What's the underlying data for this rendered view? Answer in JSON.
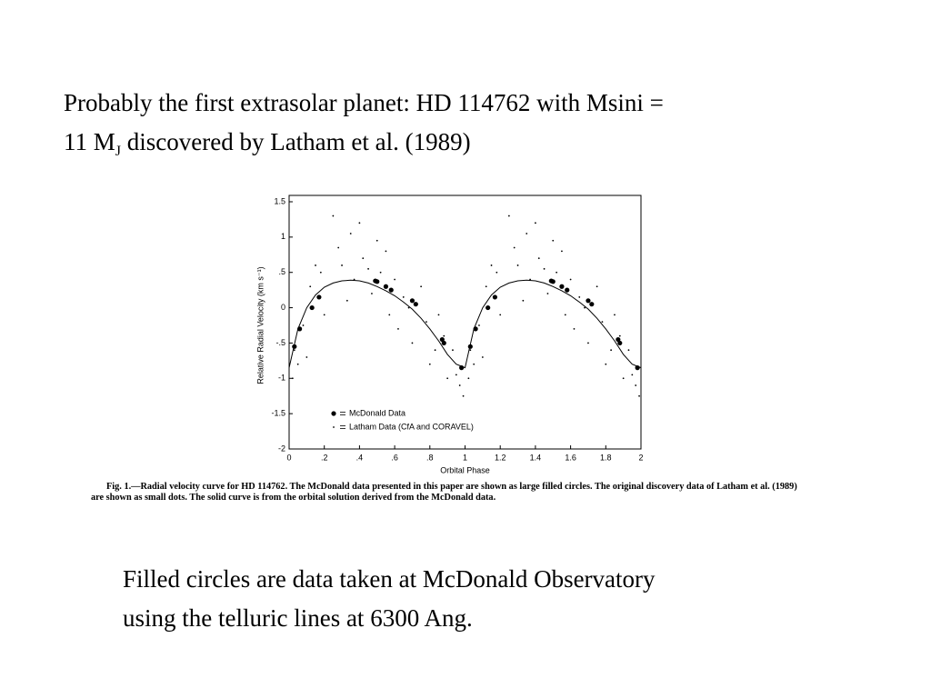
{
  "slide": {
    "title_line1": "Probably the first extrasolar planet: HD 114762 with Msini =",
    "title_line2_a": "11 M",
    "title_line2_sub": "J",
    "title_line2_b": " discovered by Latham et al. (1989)",
    "caption": "Fig. 1.—Radial velocity curve for HD 114762. The McDonald data presented in this paper are shown as large filled circles. The original discovery data of Latham et al. (1989) are shown as small dots. The solid curve is from the orbital solution derived from the McDonald data.",
    "note_line1": "Filled circles are data taken at McDonald Observatory",
    "note_line2": "using the telluric lines at 6300 Ang."
  },
  "chart_data": {
    "type": "scatter",
    "x_label": "Orbital Phase",
    "y_label": "Relative Radial Velocity (km s⁻¹)",
    "xlim": [
      0,
      2
    ],
    "ylim": [
      -2,
      1.5
    ],
    "xticks": [
      0,
      {
        "value": 0.2,
        "label": ".2"
      },
      {
        "value": 0.4,
        "label": ".4"
      },
      {
        "value": 0.6,
        "label": ".6"
      },
      {
        "value": 0.8,
        "label": ".8"
      },
      1,
      1.2,
      1.4,
      1.6,
      1.8,
      2
    ],
    "yticks": [
      1.5,
      1,
      {
        "value": 0.5,
        "label": ".5"
      },
      0,
      {
        "value": -0.5,
        "label": "-.5"
      },
      -1,
      -1.5,
      -2
    ],
    "series": [
      {
        "name": "McDonald Data",
        "color": "#000000",
        "x": [
          0.03,
          0.06,
          0.13,
          0.17,
          0.49,
          0.5,
          0.55,
          0.58,
          0.7,
          0.72,
          0.87,
          0.88,
          0.98,
          1.03,
          1.06,
          1.13,
          1.17,
          1.49,
          1.5,
          1.55,
          1.58,
          1.7,
          1.72,
          1.87,
          1.88,
          1.98
        ],
        "values": [
          -0.55,
          -0.3,
          0.0,
          0.15,
          0.38,
          0.37,
          0.3,
          0.25,
          0.1,
          0.05,
          -0.45,
          -0.5,
          -0.85,
          -0.55,
          -0.3,
          0.0,
          0.15,
          0.38,
          0.37,
          0.3,
          0.25,
          0.1,
          0.05,
          -0.45,
          -0.5,
          -0.85
        ]
      },
      {
        "name": "Latham Data (CfA and CORAVEL)",
        "color": "#000000",
        "x": [
          0.02,
          0.03,
          0.05,
          0.08,
          0.1,
          0.12,
          0.15,
          0.18,
          0.2,
          0.25,
          0.28,
          0.3,
          0.33,
          0.35,
          0.37,
          0.4,
          0.42,
          0.45,
          0.47,
          0.5,
          0.52,
          0.55,
          0.57,
          0.6,
          0.62,
          0.65,
          0.68,
          0.7,
          0.75,
          0.78,
          0.8,
          0.83,
          0.85,
          0.88,
          0.9,
          0.93,
          0.95,
          0.97,
          0.99,
          1.02,
          1.03,
          1.05,
          1.08,
          1.1,
          1.12,
          1.15,
          1.18,
          1.2,
          1.25,
          1.28,
          1.3,
          1.33,
          1.35,
          1.37,
          1.4,
          1.42,
          1.45,
          1.47,
          1.5,
          1.52,
          1.55,
          1.57,
          1.6,
          1.62,
          1.65,
          1.68,
          1.7,
          1.75,
          1.78,
          1.8,
          1.83,
          1.85,
          1.88,
          1.9,
          1.93,
          1.95,
          1.97,
          1.99
        ],
        "values": [
          -1.0,
          -0.6,
          -0.8,
          -0.25,
          -0.7,
          0.3,
          0.6,
          0.5,
          -0.1,
          1.3,
          0.85,
          0.6,
          0.1,
          1.05,
          0.4,
          1.2,
          0.7,
          0.55,
          0.2,
          0.95,
          0.5,
          0.8,
          -0.1,
          0.4,
          -0.3,
          0.15,
          0.0,
          -0.5,
          0.3,
          -0.2,
          -0.8,
          -0.6,
          -0.1,
          -0.4,
          -1.0,
          -0.6,
          -0.95,
          -1.1,
          -1.25,
          -1.0,
          -0.6,
          -0.8,
          -0.25,
          -0.7,
          0.3,
          0.6,
          0.5,
          -0.1,
          1.3,
          0.85,
          0.6,
          0.1,
          1.05,
          0.4,
          1.2,
          0.7,
          0.55,
          0.2,
          0.95,
          0.5,
          0.8,
          -0.1,
          0.4,
          -0.3,
          0.15,
          0.0,
          -0.5,
          0.3,
          -0.2,
          -0.8,
          -0.6,
          -0.1,
          -0.4,
          -1.0,
          -0.6,
          -0.95,
          -1.1,
          -1.25
        ]
      }
    ],
    "curve": {
      "color": "#000000",
      "x": [
        0,
        0.05,
        0.1,
        0.15,
        0.2,
        0.25,
        0.3,
        0.35,
        0.4,
        0.45,
        0.5,
        0.55,
        0.6,
        0.65,
        0.7,
        0.75,
        0.8,
        0.85,
        0.9,
        0.95,
        1,
        1.05,
        1.1,
        1.15,
        1.2,
        1.25,
        1.3,
        1.35,
        1.4,
        1.45,
        1.5,
        1.55,
        1.6,
        1.65,
        1.7,
        1.75,
        1.8,
        1.85,
        1.9,
        1.95,
        2
      ],
      "values": [
        -0.85,
        -0.3,
        0.0,
        0.18,
        0.29,
        0.35,
        0.38,
        0.39,
        0.38,
        0.35,
        0.3,
        0.24,
        0.17,
        0.08,
        -0.02,
        -0.15,
        -0.3,
        -0.47,
        -0.66,
        -0.8,
        -0.85,
        -0.3,
        0.0,
        0.18,
        0.29,
        0.35,
        0.38,
        0.39,
        0.38,
        0.35,
        0.3,
        0.24,
        0.17,
        0.08,
        -0.02,
        -0.15,
        -0.3,
        -0.47,
        -0.66,
        -0.8,
        -0.85
      ]
    }
  }
}
